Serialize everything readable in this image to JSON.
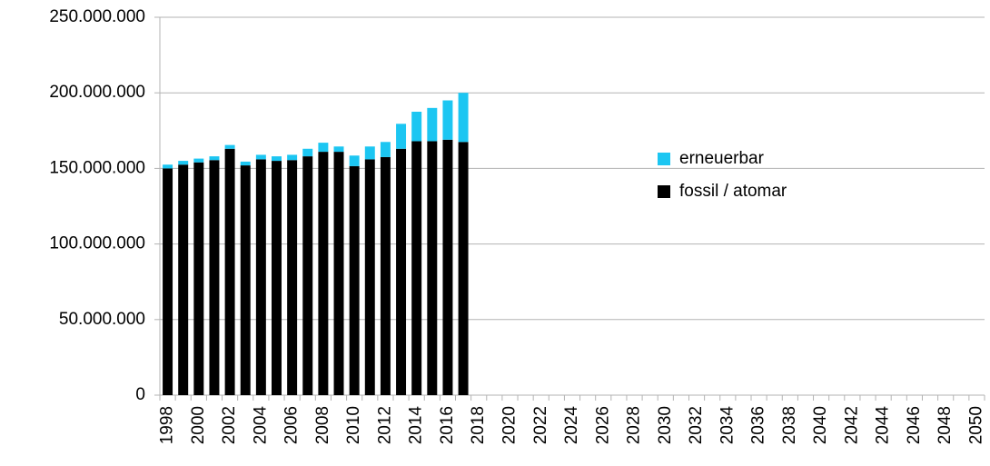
{
  "chart_data": {
    "type": "bar",
    "stacked": true,
    "categories": [
      "1998",
      null,
      "2000",
      null,
      "2002",
      null,
      "2004",
      null,
      "2006",
      null,
      "2008",
      null,
      "2010",
      null,
      "2012",
      null,
      "2014",
      null,
      "2016",
      null,
      "2018",
      null,
      "2020",
      null,
      "2022",
      null,
      "2024",
      null,
      "2026",
      null,
      "2028",
      null,
      "2030",
      null,
      "2032",
      null,
      "2034",
      null,
      "2036",
      null,
      "2038",
      null,
      "2040",
      null,
      "2042",
      null,
      "2044",
      null,
      "2046",
      null,
      "2048",
      null,
      "2050"
    ],
    "series": [
      {
        "name": "fossil / atomar",
        "color": "#000000",
        "values": [
          150000000,
          152500000,
          154000000,
          155500000,
          163000000,
          152000000,
          156000000,
          155000000,
          155500000,
          158000000,
          161000000,
          161000000,
          151500000,
          156000000,
          157500000,
          163000000,
          168000000,
          168000000,
          169000000,
          167500000,
          null,
          null,
          null,
          null,
          null,
          null,
          null,
          null,
          null,
          null,
          null,
          null,
          null,
          null,
          null,
          null,
          null,
          null,
          null,
          null,
          null,
          null,
          null,
          null,
          null,
          null,
          null,
          null,
          null,
          null,
          null,
          null,
          null
        ]
      },
      {
        "name": "erneuerbar",
        "color": "#1cc6f2",
        "values": [
          2500000,
          2500000,
          2500000,
          2500000,
          2500000,
          2500000,
          3000000,
          3000000,
          3500000,
          5000000,
          6000000,
          3500000,
          7000000,
          8500000,
          10000000,
          16500000,
          19500000,
          22000000,
          26000000,
          32500000,
          null,
          null,
          null,
          null,
          null,
          null,
          null,
          null,
          null,
          null,
          null,
          null,
          null,
          null,
          null,
          null,
          null,
          null,
          null,
          null,
          null,
          null,
          null,
          null,
          null,
          null,
          null,
          null,
          null,
          null,
          null,
          null,
          null
        ]
      }
    ],
    "ylim": [
      0,
      250000000
    ],
    "yticks": [
      {
        "value": 0,
        "label": "0"
      },
      {
        "value": 50000000,
        "label": "50.000.000"
      },
      {
        "value": 100000000,
        "label": "100.000.000"
      },
      {
        "value": 150000000,
        "label": "150.000.000"
      },
      {
        "value": 200000000,
        "label": "200.000.000"
      },
      {
        "value": 250000000,
        "label": "250.000.000"
      }
    ],
    "grid": true,
    "legend": "right"
  }
}
